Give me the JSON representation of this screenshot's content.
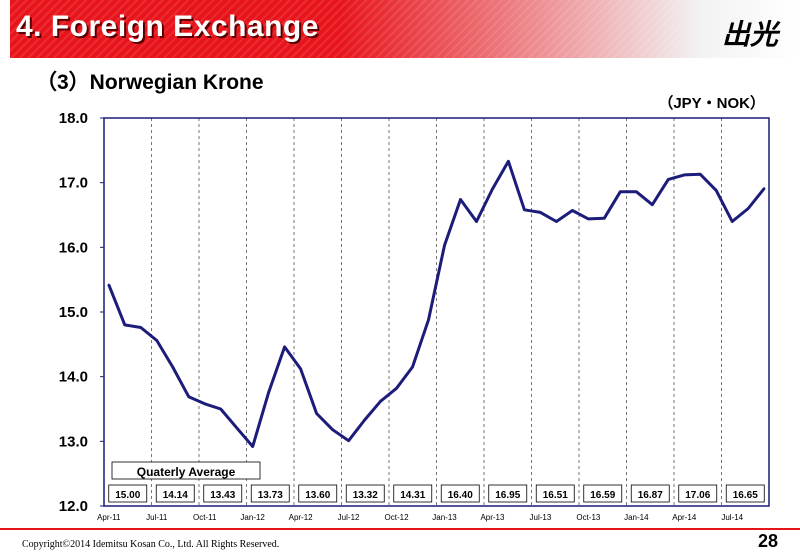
{
  "header": {
    "title": "4. Foreign Exchange",
    "logo_text": "出光"
  },
  "subtitle": "（3）Norwegian Krone",
  "footer": {
    "copyright": "Copyright©2014   Idemitsu Kosan Co., Ltd. All Rights Reserved.",
    "page_number": "28"
  },
  "colors": {
    "brand_red": "#e8141b",
    "line": "#1c1c7a",
    "frame": "#1c1c7a"
  },
  "chart_data": {
    "type": "line",
    "title": "（3）Norwegian Krone",
    "unit_label": "（JPY・NOK）",
    "ylim": [
      12.0,
      18.0
    ],
    "y_ticks": [
      "12.0",
      "13.0",
      "14.0",
      "15.0",
      "16.0",
      "17.0",
      "18.0"
    ],
    "x_tick_labels": [
      "Apr-11",
      "Jul-11",
      "Oct-11",
      "Jan-12",
      "Apr-12",
      "Jul-12",
      "Oct-12",
      "Jan-13",
      "Apr-13",
      "Jul-13",
      "Oct-13",
      "Jan-14",
      "Apr-14",
      "Jul-14"
    ],
    "grid": "vertical dashed at quarter boundaries",
    "series": [
      {
        "name": "",
        "values": [
          15.42,
          14.8,
          14.76,
          14.56,
          14.15,
          13.69,
          13.58,
          13.5,
          13.21,
          12.92,
          13.76,
          14.46,
          14.12,
          13.43,
          13.18,
          13.01,
          13.33,
          13.62,
          13.82,
          14.15,
          14.88,
          16.03,
          16.74,
          16.4,
          16.9,
          17.33,
          16.58,
          16.54,
          16.4,
          16.57,
          16.44,
          16.45,
          16.86,
          16.86,
          16.66,
          17.05,
          17.12,
          17.13,
          16.88,
          16.4,
          16.6,
          16.91
        ]
      }
    ],
    "quarterly_average_label": "Quaterly Average",
    "quarterly_averages": [
      "15.00",
      "14.14",
      "13.43",
      "13.73",
      "13.60",
      "13.32",
      "14.31",
      "16.40",
      "16.95",
      "16.51",
      "16.59",
      "16.87",
      "17.06",
      "16.65"
    ]
  }
}
